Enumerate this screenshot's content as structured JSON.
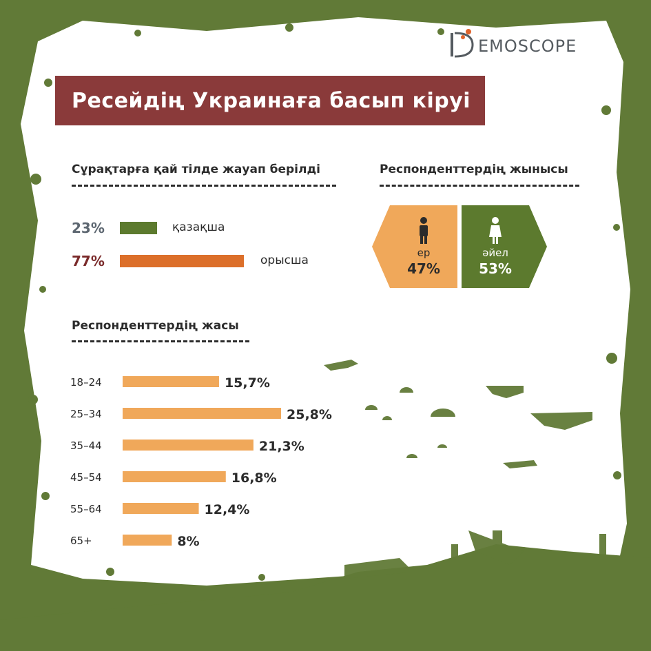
{
  "brand": {
    "logo_text": "EMOSCOPE"
  },
  "title": "Ресейдің Украинаға басып кіруі",
  "colors": {
    "frame_green": "#617a37",
    "title_bg": "#8a3a3a",
    "kazakh_green": "#5c7a2e",
    "russian_orange": "#dc6f2a",
    "male_orange": "#f0a85a",
    "female_green": "#5c7a2e",
    "age_bar": "#f0a85a"
  },
  "language_section": {
    "title": "Сұрақтарға қай тілде жауап берілді",
    "items": [
      {
        "pct": "23%",
        "label": "қазақша"
      },
      {
        "pct": "77%",
        "label": "орысша"
      }
    ]
  },
  "gender_section": {
    "title": "Респонденттердің жынысы",
    "male": {
      "label": "ер",
      "pct": "47%",
      "icon": "male-person-icon"
    },
    "female": {
      "label": "әйел",
      "pct": "53%",
      "icon": "female-person-icon"
    }
  },
  "age_section": {
    "title": "Респонденттердің жасы"
  },
  "chart_data": [
    {
      "type": "bar",
      "orientation": "horizontal",
      "categories": [
        "қазақша",
        "орысша"
      ],
      "values": [
        23,
        77
      ],
      "value_labels": [
        "23%",
        "77%"
      ],
      "unit": "%",
      "colors": [
        "#5c7a2e",
        "#dc6f2a"
      ]
    },
    {
      "type": "bar",
      "orientation": "horizontal",
      "categories": [
        "18–24",
        "25–34",
        "35–44",
        "45–54",
        "55–64",
        "65+"
      ],
      "values": [
        15.7,
        25.8,
        21.3,
        16.8,
        12.4,
        8
      ],
      "value_labels": [
        "15,7%",
        "25,8%",
        "21,3%",
        "16,8%",
        "12,4%",
        "8%"
      ],
      "unit": "%",
      "colors": [
        "#f0a85a"
      ]
    }
  ]
}
